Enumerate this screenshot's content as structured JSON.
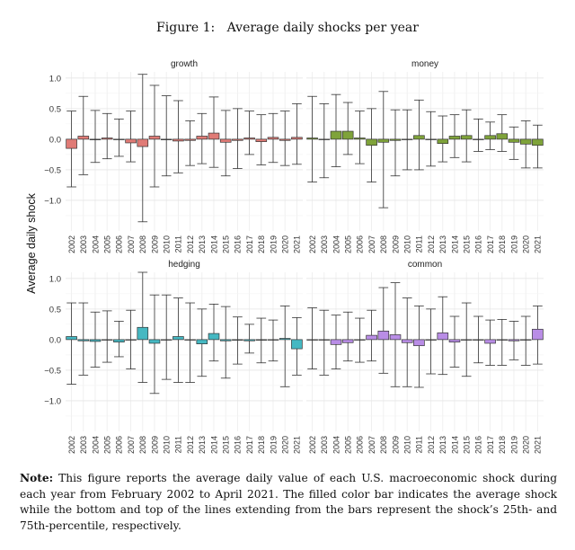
{
  "figure_title": "Figure 1:   Average daily shocks per year",
  "note": {
    "label": "Note:",
    "text": "This figure reports the average daily value of each U.S. macroeconomic shock during each year from February 2002 to April 2021. The filled color bar indicates the average shock while the bottom and top of the lines extending from the bars represent the shock’s 25th- and 75th-percentile, respectively."
  },
  "chart_data": {
    "type": "bar",
    "ylabel": "Average daily shock",
    "ylim": [
      -1.5,
      1.1
    ],
    "yticks": [
      1.0,
      0.5,
      0.0,
      -0.5,
      -1.0
    ],
    "ytick_labels": [
      "1.0",
      "0.5",
      "0.0",
      "−0.5",
      "−1.0"
    ],
    "grid": true,
    "categories": [
      "2002",
      "2003",
      "2004",
      "2005",
      "2006",
      "2007",
      "2008",
      "2009",
      "2010",
      "2011",
      "2012",
      "2013",
      "2014",
      "2015",
      "2016",
      "2017",
      "2018",
      "2019",
      "2020",
      "2021"
    ],
    "colors": {
      "growth": "#e07b76",
      "money": "#7fa33a",
      "hedging": "#45b8c2",
      "common": "#b98de6"
    },
    "panels": [
      {
        "name": "growth",
        "mean": [
          -0.15,
          0.05,
          -0.01,
          0.02,
          0.0,
          -0.06,
          -0.12,
          0.05,
          -0.01,
          -0.03,
          -0.02,
          0.05,
          0.1,
          -0.05,
          -0.02,
          0.02,
          -0.04,
          0.03,
          -0.02,
          0.03
        ],
        "p25": [
          -0.78,
          -0.58,
          -0.38,
          -0.32,
          -0.28,
          -0.37,
          -1.35,
          -0.78,
          -0.6,
          -0.55,
          -0.43,
          -0.4,
          -0.46,
          -0.6,
          -0.48,
          -0.25,
          -0.42,
          -0.38,
          -0.43,
          -0.41
        ],
        "p75": [
          0.46,
          0.7,
          0.47,
          0.42,
          0.33,
          0.46,
          1.06,
          0.88,
          0.71,
          0.63,
          0.3,
          0.42,
          0.69,
          0.47,
          0.5,
          0.46,
          0.4,
          0.42,
          0.46,
          0.58
        ]
      },
      {
        "name": "money",
        "mean": [
          0.02,
          0.0,
          0.13,
          0.13,
          0.02,
          -0.1,
          -0.05,
          -0.02,
          0.0,
          0.06,
          0.0,
          -0.07,
          0.05,
          0.06,
          0.0,
          0.06,
          0.09,
          -0.05,
          -0.08,
          -0.1
        ],
        "p25": [
          -0.7,
          -0.63,
          -0.45,
          -0.25,
          -0.4,
          -0.7,
          -1.12,
          -0.6,
          -0.5,
          -0.5,
          -0.44,
          -0.37,
          -0.3,
          -0.37,
          -0.2,
          -0.17,
          -0.2,
          -0.33,
          -0.47,
          -0.47
        ],
        "p75": [
          0.7,
          0.58,
          0.73,
          0.6,
          0.46,
          0.5,
          0.78,
          0.48,
          0.48,
          0.64,
          0.45,
          0.38,
          0.4,
          0.48,
          0.33,
          0.28,
          0.4,
          0.2,
          0.3,
          0.23
        ]
      },
      {
        "name": "hedging",
        "mean": [
          0.05,
          -0.02,
          -0.03,
          0.0,
          -0.04,
          0.0,
          0.2,
          -0.06,
          0.0,
          0.05,
          0.0,
          -0.07,
          0.1,
          -0.02,
          -0.01,
          -0.02,
          -0.01,
          0.0,
          0.02,
          -0.15
        ],
        "p25": [
          -0.73,
          -0.58,
          -0.45,
          -0.37,
          -0.28,
          -0.48,
          -0.7,
          -0.88,
          -0.65,
          -0.7,
          -0.7,
          -0.6,
          -0.35,
          -0.63,
          -0.4,
          -0.22,
          -0.38,
          -0.35,
          -0.77,
          -0.58
        ],
        "p75": [
          0.6,
          0.6,
          0.45,
          0.47,
          0.3,
          0.48,
          1.1,
          0.73,
          0.73,
          0.68,
          0.6,
          0.5,
          0.58,
          0.54,
          0.37,
          0.25,
          0.35,
          0.32,
          0.55,
          0.36
        ]
      },
      {
        "name": "common",
        "mean": [
          0.0,
          0.0,
          -0.08,
          -0.05,
          0.0,
          0.07,
          0.14,
          0.08,
          -0.05,
          -0.1,
          0.0,
          0.11,
          -0.04,
          0.0,
          0.0,
          -0.06,
          0.0,
          -0.02,
          0.0,
          0.17
        ],
        "p25": [
          -0.48,
          -0.58,
          -0.48,
          -0.35,
          -0.37,
          -0.35,
          -0.55,
          -0.77,
          -0.77,
          -0.78,
          -0.56,
          -0.57,
          -0.45,
          -0.6,
          -0.38,
          -0.42,
          -0.42,
          -0.33,
          -0.42,
          -0.4
        ],
        "p75": [
          0.52,
          0.48,
          0.4,
          0.45,
          0.35,
          0.48,
          0.85,
          0.93,
          0.68,
          0.55,
          0.5,
          0.7,
          0.38,
          0.6,
          0.38,
          0.32,
          0.33,
          0.3,
          0.38,
          0.55
        ]
      }
    ]
  }
}
